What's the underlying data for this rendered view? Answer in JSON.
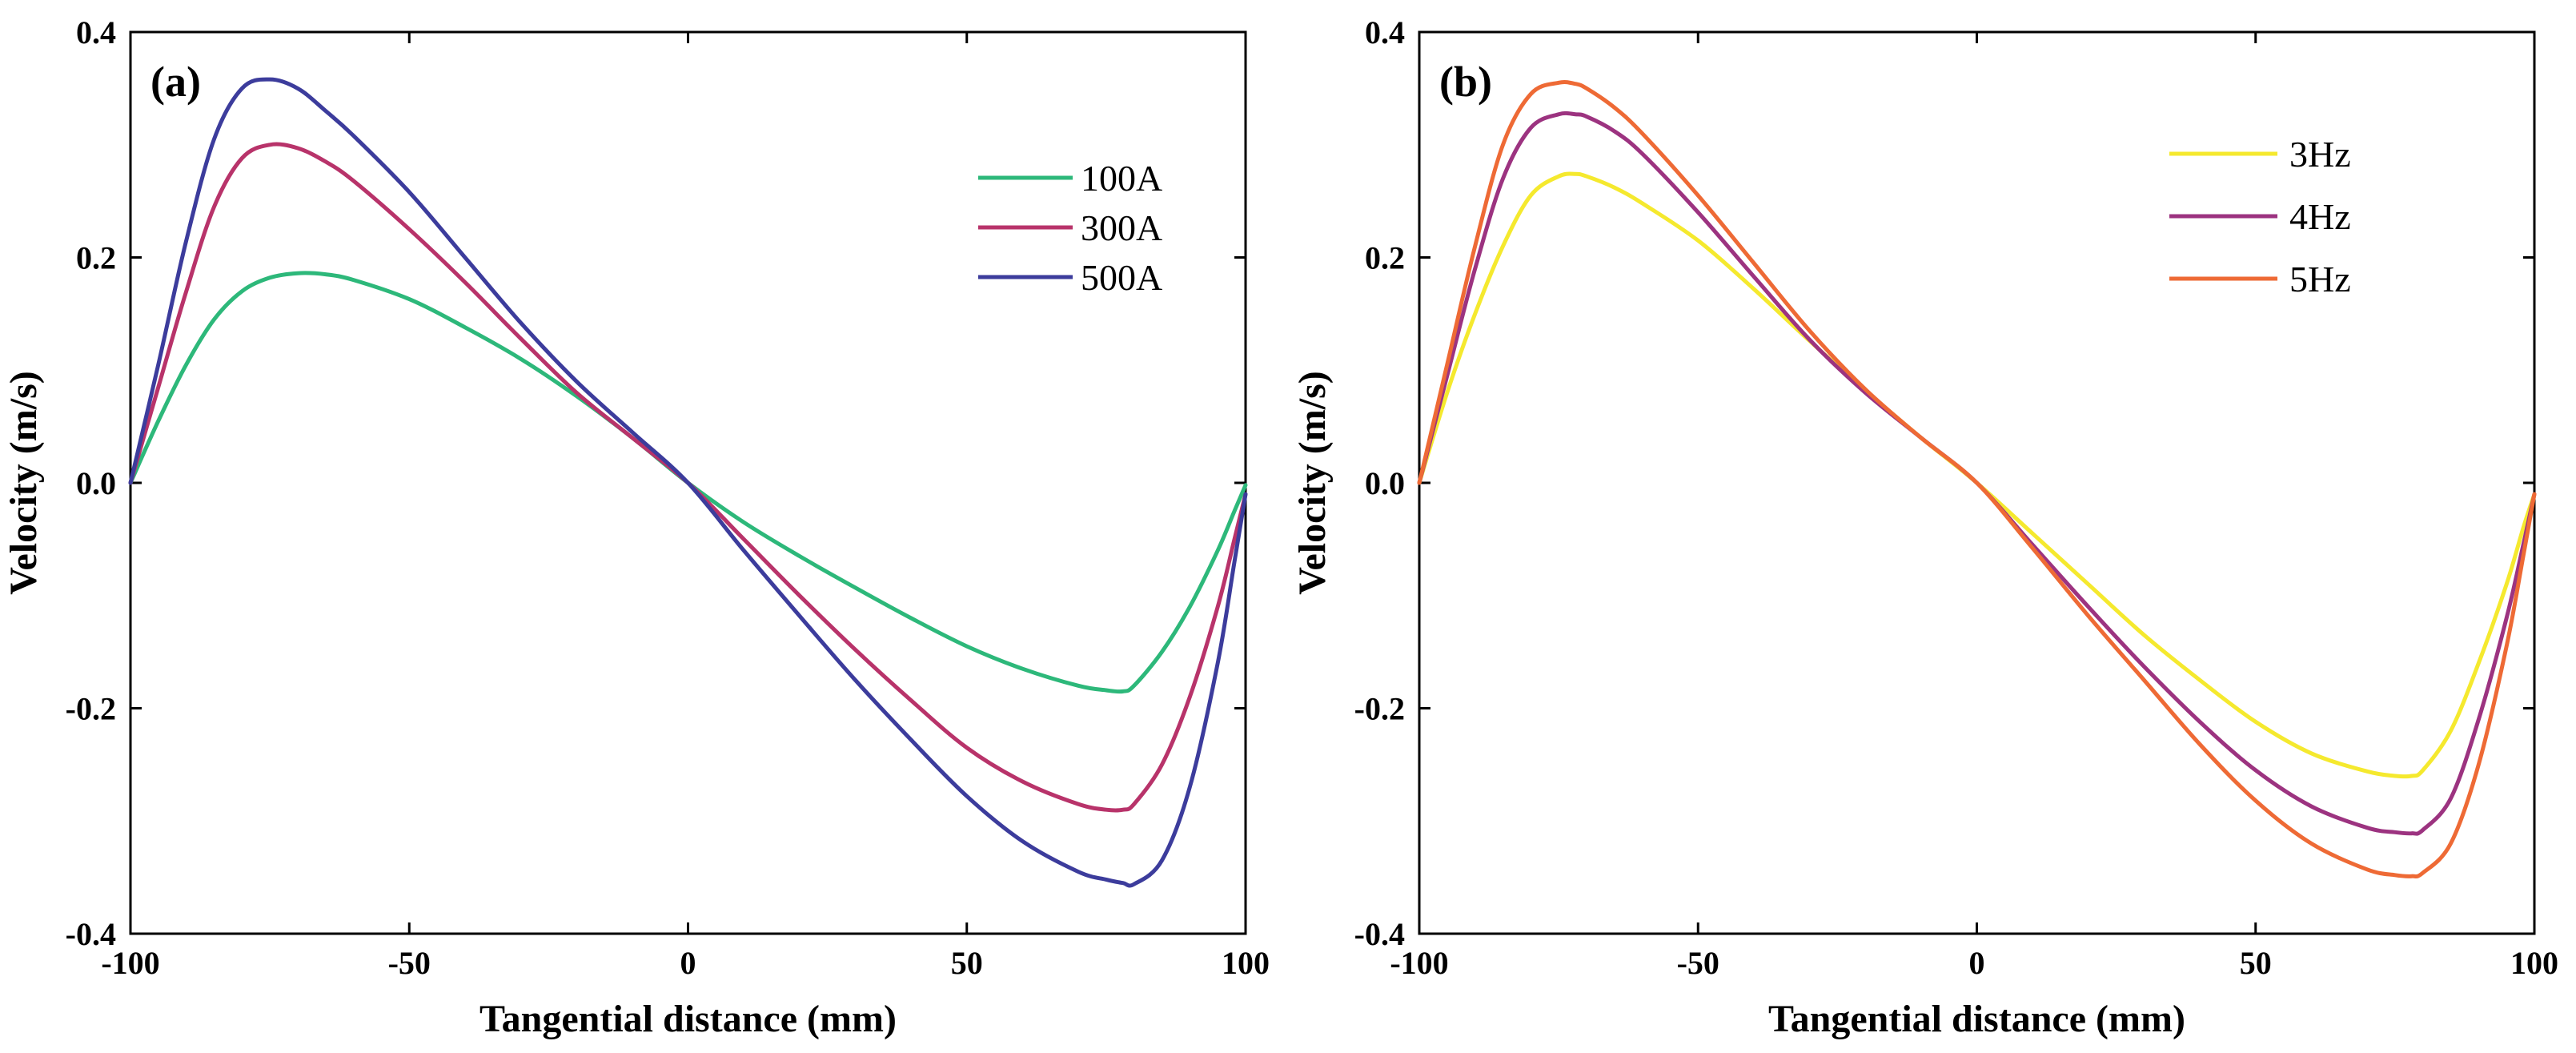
{
  "chart_data": [
    {
      "type": "line",
      "panel_label": "(a)",
      "xlabel": "Tangential distance (mm)",
      "ylabel": "Velocity (m/s)",
      "xlim": [
        -100,
        100
      ],
      "ylim": [
        -0.4,
        0.4
      ],
      "xticks": [
        -100,
        -50,
        0,
        50,
        100
      ],
      "xtick_labels": [
        "-100",
        "-50",
        "0",
        "50",
        "100"
      ],
      "yticks": [
        -0.4,
        -0.2,
        0.0,
        0.2,
        0.4
      ],
      "ytick_labels": [
        "-0.4",
        "-0.2",
        "0.0",
        "0.2",
        "0.4"
      ],
      "legend_position": "top-right",
      "x": [
        -100,
        -95,
        -90,
        -85,
        -80,
        -75,
        -70,
        -65,
        -60,
        -50,
        -40,
        -30,
        -20,
        -10,
        0,
        10,
        20,
        30,
        40,
        50,
        60,
        70,
        75,
        78,
        80,
        85,
        90,
        95,
        98,
        100
      ],
      "series": [
        {
          "name": "100A",
          "color": "#2db87a",
          "values": [
            0.0,
            0.055,
            0.105,
            0.145,
            0.17,
            0.182,
            0.186,
            0.185,
            0.18,
            0.163,
            0.138,
            0.11,
            0.077,
            0.04,
            0.0,
            -0.035,
            -0.065,
            -0.093,
            -0.12,
            -0.145,
            -0.165,
            -0.18,
            -0.184,
            -0.185,
            -0.18,
            -0.15,
            -0.11,
            -0.06,
            -0.025,
            -0.002
          ]
        },
        {
          "name": "300A",
          "color": "#b8336a",
          "values": [
            0.0,
            0.085,
            0.17,
            0.245,
            0.288,
            0.3,
            0.297,
            0.285,
            0.268,
            0.225,
            0.178,
            0.128,
            0.08,
            0.04,
            0.0,
            -0.05,
            -0.1,
            -0.148,
            -0.193,
            -0.235,
            -0.265,
            -0.285,
            -0.29,
            -0.29,
            -0.285,
            -0.25,
            -0.19,
            -0.11,
            -0.05,
            -0.01
          ]
        },
        {
          "name": "500A",
          "color": "#3c3c9c",
          "values": [
            0.0,
            0.105,
            0.215,
            0.305,
            0.35,
            0.358,
            0.35,
            0.33,
            0.308,
            0.258,
            0.2,
            0.142,
            0.09,
            0.045,
            0.0,
            -0.06,
            -0.118,
            -0.175,
            -0.228,
            -0.278,
            -0.318,
            -0.345,
            -0.352,
            -0.355,
            -0.356,
            -0.335,
            -0.27,
            -0.16,
            -0.07,
            -0.01
          ]
        }
      ]
    },
    {
      "type": "line",
      "panel_label": "(b)",
      "xlabel": "Tangential distance (mm)",
      "ylabel": "Velocity (m/s)",
      "xlim": [
        -100,
        100
      ],
      "ylim": [
        -0.4,
        0.4
      ],
      "xticks": [
        -100,
        -50,
        0,
        50,
        100
      ],
      "xtick_labels": [
        "-100",
        "-50",
        "0",
        "50",
        "100"
      ],
      "yticks": [
        -0.4,
        -0.2,
        0.0,
        0.2,
        0.4
      ],
      "ytick_labels": [
        "-0.4",
        "-0.2",
        "0.0",
        "0.2",
        "0.4"
      ],
      "legend_position": "top-right",
      "x": [
        -100,
        -95,
        -90,
        -85,
        -80,
        -75,
        -72,
        -70,
        -65,
        -60,
        -50,
        -40,
        -30,
        -20,
        -10,
        0,
        10,
        20,
        30,
        40,
        50,
        60,
        70,
        75,
        78,
        80,
        85,
        90,
        95,
        98,
        100
      ],
      "series": [
        {
          "name": "3Hz",
          "color": "#f5e92e",
          "values": [
            0.0,
            0.08,
            0.15,
            0.21,
            0.255,
            0.272,
            0.274,
            0.272,
            0.262,
            0.248,
            0.215,
            0.172,
            0.126,
            0.082,
            0.04,
            0.0,
            -0.045,
            -0.09,
            -0.135,
            -0.175,
            -0.212,
            -0.24,
            -0.256,
            -0.26,
            -0.26,
            -0.255,
            -0.22,
            -0.16,
            -0.09,
            -0.04,
            -0.01
          ]
        },
        {
          "name": "4Hz",
          "color": "#9c3380",
          "values": [
            0.0,
            0.095,
            0.19,
            0.27,
            0.315,
            0.327,
            0.327,
            0.325,
            0.312,
            0.292,
            0.24,
            0.183,
            0.127,
            0.08,
            0.04,
            0.0,
            -0.055,
            -0.11,
            -0.163,
            -0.212,
            -0.255,
            -0.287,
            -0.306,
            -0.31,
            -0.311,
            -0.308,
            -0.28,
            -0.21,
            -0.12,
            -0.055,
            -0.01
          ]
        },
        {
          "name": "5Hz",
          "color": "#ee6a35",
          "values": [
            0.0,
            0.105,
            0.21,
            0.3,
            0.345,
            0.355,
            0.354,
            0.35,
            0.333,
            0.31,
            0.255,
            0.195,
            0.135,
            0.083,
            0.04,
            0.0,
            -0.058,
            -0.118,
            -0.175,
            -0.232,
            -0.282,
            -0.32,
            -0.343,
            -0.348,
            -0.349,
            -0.346,
            -0.32,
            -0.25,
            -0.145,
            -0.065,
            -0.01
          ]
        }
      ]
    }
  ]
}
